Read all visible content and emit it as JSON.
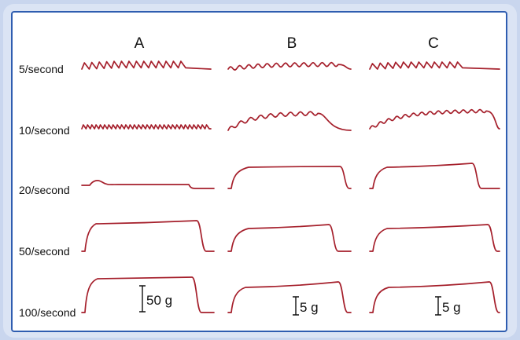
{
  "columns": [
    "A",
    "B",
    "C"
  ],
  "rows": [
    "5/second",
    "10/second",
    "20/second",
    "50/second",
    "100/second"
  ],
  "scale_bars": [
    "50 g",
    "5 g",
    "5 g"
  ],
  "trace_color": "#a51f2b",
  "border_color": "#2f5db0"
}
